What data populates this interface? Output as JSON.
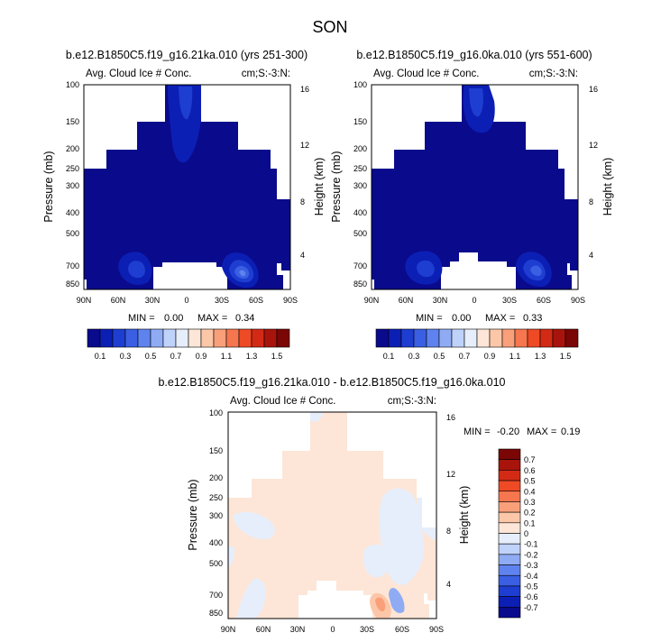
{
  "figure": {
    "title": "SON"
  },
  "color_bars": {
    "abs_colors": [
      "#0a0a8c",
      "#0c1fb5",
      "#1e3ed1",
      "#3a5fe3",
      "#5f83ee",
      "#8fabf4",
      "#bfd2fa",
      "#e6eefb",
      "#fde6d7",
      "#fcc7a8",
      "#f9a07b",
      "#f6764f",
      "#ef4a26",
      "#d32a16",
      "#a8140c",
      "#7a0606"
    ],
    "abs_labels": [
      "0.1",
      "0.3",
      "0.5",
      "0.7",
      "0.9",
      "1.1",
      "1.3",
      "1.5"
    ],
    "diff_colors": [
      "#7a0606",
      "#a8140c",
      "#d32a16",
      "#ef4a26",
      "#f6764f",
      "#f9a07b",
      "#fcc7a8",
      "#fde6d7",
      "#e6eefb",
      "#bfd2fa",
      "#8fabf4",
      "#5f83ee",
      "#3a5fe3",
      "#1e3ed1",
      "#0c1fb5",
      "#0a0a8c"
    ],
    "diff_labels": [
      "0.7",
      "0.6",
      "0.5",
      "0.4",
      "0.3",
      "0.2",
      "0.1",
      "0",
      "-0.1",
      "-0.2",
      "-0.3",
      "-0.4",
      "-0.5",
      "-0.6",
      "-0.7"
    ]
  },
  "chart_data": [
    {
      "type": "heatmap",
      "title": "b.e12.B1850C5.f19_g16.21ka.010 (yrs 251-300)",
      "left_label": "Avg. Cloud Ice # Conc.",
      "right_label": "cm;S:-3:N:",
      "xlabel": "",
      "ylabel": "Pressure (mb)",
      "y2label": "Height (km)",
      "x_ticks": [
        "90N",
        "60N",
        "30N",
        "0",
        "30S",
        "60S",
        "90S"
      ],
      "y_ticks": [
        "100",
        "150",
        "200",
        "250",
        "300",
        "400",
        "500",
        "700",
        "850"
      ],
      "y2_ticks": [
        "16",
        "12",
        "8",
        "4"
      ],
      "stats": {
        "min_label": "MIN =",
        "min": "0.00",
        "max_label": "MAX =",
        "max": "0.34"
      },
      "field_min": 0.0,
      "field_max": 0.34
    },
    {
      "type": "heatmap",
      "title": "b.e12.B1850C5.f19_g16.0ka.010 (yrs 551-600)",
      "left_label": "Avg. Cloud Ice # Conc.",
      "right_label": "cm;S:-3:N:",
      "xlabel": "",
      "ylabel": "Pressure (mb)",
      "y2label": "Height (km)",
      "x_ticks": [
        "90N",
        "60N",
        "30N",
        "0",
        "30S",
        "60S",
        "90S"
      ],
      "y_ticks": [
        "100",
        "150",
        "200",
        "250",
        "300",
        "400",
        "500",
        "700",
        "850"
      ],
      "y2_ticks": [
        "16",
        "12",
        "8",
        "4"
      ],
      "stats": {
        "min_label": "MIN =",
        "min": "0.00",
        "max_label": "MAX =",
        "max": "0.33"
      },
      "field_min": 0.0,
      "field_max": 0.33
    },
    {
      "type": "heatmap",
      "title": "b.e12.B1850C5.f19_g16.21ka.010 - b.e12.B1850C5.f19_g16.0ka.010",
      "left_label": "Avg. Cloud Ice # Conc.",
      "right_label": "cm;S:-3:N:",
      "xlabel": "",
      "ylabel": "Pressure (mb)",
      "y2label": "Height (km)",
      "x_ticks": [
        "90N",
        "60N",
        "30N",
        "0",
        "30S",
        "60S",
        "90S"
      ],
      "y_ticks": [
        "100",
        "150",
        "200",
        "250",
        "300",
        "400",
        "500",
        "700",
        "850"
      ],
      "y2_ticks": [
        "16",
        "12",
        "8",
        "4"
      ],
      "stats": {
        "min_label": "MIN =",
        "min": "-0.20",
        "max_label": "MAX =",
        "max": "0.19"
      },
      "field_min": -0.2,
      "field_max": 0.19
    }
  ]
}
